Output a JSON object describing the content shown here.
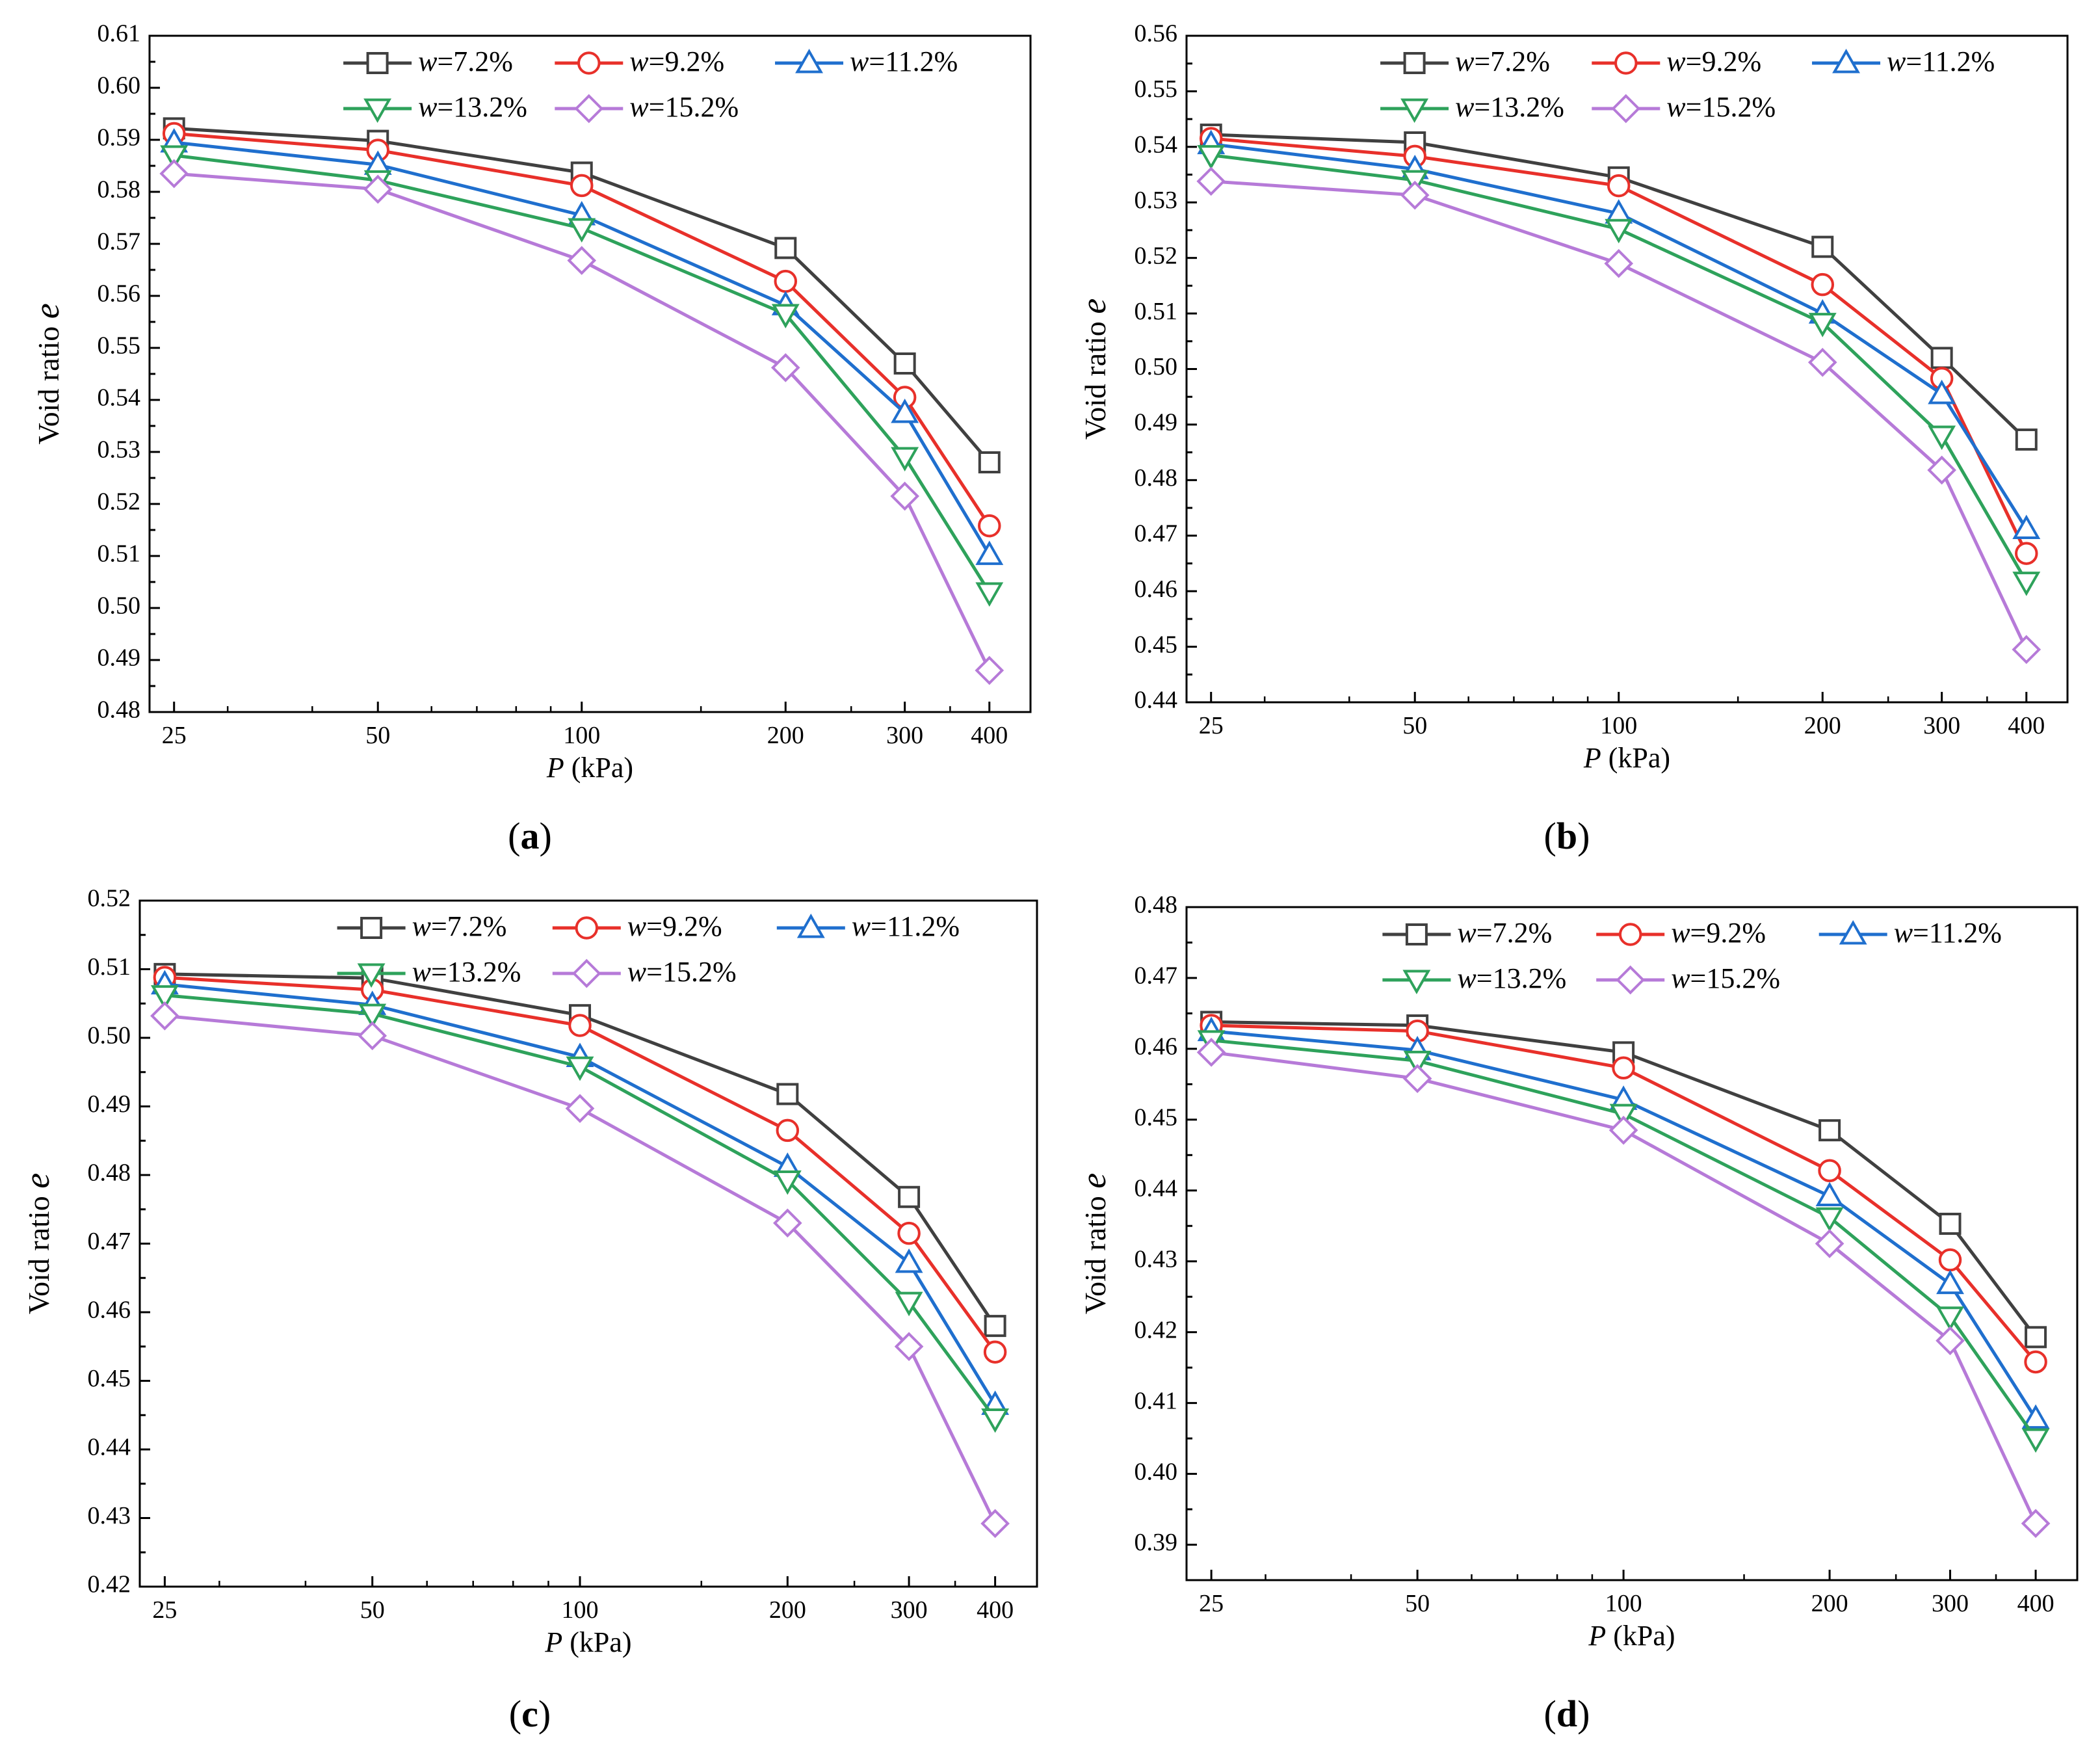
{
  "figure": {
    "series_style": [
      {
        "label": "w=7.2%",
        "color": "#404040",
        "marker": "square"
      },
      {
        "label": "w=9.2%",
        "color": "#e8302a",
        "marker": "circle"
      },
      {
        "label": "w=11.2%",
        "color": "#1f6fce",
        "marker": "triangle-up"
      },
      {
        "label": "w=13.2%",
        "color": "#2ea25b",
        "marker": "triangle-down"
      },
      {
        "label": "w=15.2%",
        "color": "#b67ad8",
        "marker": "diamond"
      }
    ]
  },
  "chart_data": [
    {
      "panel": "a",
      "caption": "(a)",
      "type": "line",
      "xlabel": "P (kPa)",
      "ylabel": "Void ratio e",
      "xscale": "log",
      "x": [
        25,
        50,
        100,
        200,
        300,
        400
      ],
      "xticks": [
        "25",
        "50",
        "100",
        "200",
        "300",
        "400"
      ],
      "xlim": [
        23,
        460
      ],
      "ylim": [
        0.48,
        0.61
      ],
      "yticks": [
        "0.48",
        "0.49",
        "0.50",
        "0.51",
        "0.52",
        "0.53",
        "0.54",
        "0.55",
        "0.56",
        "0.57",
        "0.58",
        "0.59",
        "0.60",
        "0.61"
      ],
      "series": [
        {
          "name": "w=7.2%",
          "values": [
            0.5922,
            0.5898,
            0.5837,
            0.5692,
            0.547,
            0.528
          ]
        },
        {
          "name": "w=9.2%",
          "values": [
            0.5912,
            0.588,
            0.5812,
            0.5628,
            0.5405,
            0.5158
          ]
        },
        {
          "name": "w=11.2%",
          "values": [
            0.5895,
            0.5852,
            0.5755,
            0.5582,
            0.5375,
            0.5102
          ]
        },
        {
          "name": "w=13.2%",
          "values": [
            0.587,
            0.5822,
            0.573,
            0.5565,
            0.529,
            0.503
          ]
        },
        {
          "name": "w=15.2%",
          "values": [
            0.5835,
            0.5805,
            0.5668,
            0.5462,
            0.5215,
            0.488
          ]
        }
      ]
    },
    {
      "panel": "b",
      "caption": "(b)",
      "type": "line",
      "xlabel": "P (kPa)",
      "ylabel": "Void ratio e",
      "xscale": "log",
      "x": [
        25,
        50,
        100,
        200,
        300,
        400
      ],
      "xticks": [
        "25",
        "50",
        "100",
        "200",
        "300",
        "400"
      ],
      "xlim": [
        23,
        460
      ],
      "ylim": [
        0.44,
        0.56
      ],
      "yticks": [
        "0.44",
        "0.45",
        "0.46",
        "0.47",
        "0.48",
        "0.49",
        "0.50",
        "0.51",
        "0.52",
        "0.53",
        "0.54",
        "0.55",
        "0.56"
      ],
      "series": [
        {
          "name": "w=7.2%",
          "values": [
            0.5422,
            0.5408,
            0.5345,
            0.522,
            0.502,
            0.4873
          ]
        },
        {
          "name": "w=9.2%",
          "values": [
            0.5415,
            0.5383,
            0.533,
            0.5152,
            0.4983,
            0.4668
          ]
        },
        {
          "name": "w=11.2%",
          "values": [
            0.5405,
            0.536,
            0.528,
            0.51,
            0.4955,
            0.4712
          ]
        },
        {
          "name": "w=13.2%",
          "values": [
            0.5385,
            0.534,
            0.5252,
            0.5083,
            0.488,
            0.4617
          ]
        },
        {
          "name": "w=15.2%",
          "values": [
            0.5338,
            0.5313,
            0.519,
            0.5012,
            0.4818,
            0.4495
          ]
        }
      ]
    },
    {
      "panel": "c",
      "caption": "(c)",
      "type": "line",
      "xlabel": "P (kPa)",
      "ylabel": "Void ratio e",
      "xscale": "log",
      "x": [
        25,
        50,
        100,
        200,
        300,
        400
      ],
      "xticks": [
        "25",
        "50",
        "100",
        "200",
        "300",
        "400"
      ],
      "xlim": [
        23,
        460
      ],
      "ylim": [
        0.42,
        0.52
      ],
      "yticks": [
        "0.42",
        "0.43",
        "0.44",
        "0.45",
        "0.46",
        "0.47",
        "0.48",
        "0.49",
        "0.50",
        "0.51",
        "0.52"
      ],
      "series": [
        {
          "name": "w=7.2%",
          "values": [
            0.5093,
            0.5087,
            0.5033,
            0.4918,
            0.4768,
            0.458
          ]
        },
        {
          "name": "w=9.2%",
          "values": [
            0.5088,
            0.507,
            0.5018,
            0.4865,
            0.4715,
            0.4542
          ]
        },
        {
          "name": "w=11.2%",
          "values": [
            0.5078,
            0.5048,
            0.4972,
            0.4812,
            0.4672,
            0.4465
          ]
        },
        {
          "name": "w=13.2%",
          "values": [
            0.5062,
            0.5035,
            0.4958,
            0.4792,
            0.4615,
            0.4445
          ]
        },
        {
          "name": "w=15.2%",
          "values": [
            0.5032,
            0.5003,
            0.4897,
            0.473,
            0.455,
            0.4292
          ]
        }
      ]
    },
    {
      "panel": "d",
      "caption": "(d)",
      "type": "line",
      "xlabel": "P (kPa)",
      "ylabel": "Void ratio e",
      "xscale": "log",
      "x": [
        25,
        50,
        100,
        200,
        300,
        400
      ],
      "xticks": [
        "25",
        "50",
        "100",
        "200",
        "300",
        "400"
      ],
      "xlim": [
        23,
        460
      ],
      "ylim": [
        0.385,
        0.48
      ],
      "yticks": [
        "0.39",
        "0.40",
        "0.41",
        "0.42",
        "0.43",
        "0.44",
        "0.45",
        "0.46",
        "0.47",
        "0.48"
      ],
      "series": [
        {
          "name": "w=7.2%",
          "values": [
            0.4638,
            0.4633,
            0.4595,
            0.4485,
            0.4353,
            0.4193
          ]
        },
        {
          "name": "w=9.2%",
          "values": [
            0.4633,
            0.4625,
            0.4573,
            0.4428,
            0.4302,
            0.4158
          ]
        },
        {
          "name": "w=11.2%",
          "values": [
            0.4625,
            0.4598,
            0.4528,
            0.4392,
            0.4268,
            0.4078
          ]
        },
        {
          "name": "w=13.2%",
          "values": [
            0.4612,
            0.4583,
            0.4508,
            0.4362,
            0.4222,
            0.405
          ]
        },
        {
          "name": "w=15.2%",
          "values": [
            0.4595,
            0.4558,
            0.4485,
            0.4325,
            0.4188,
            0.393
          ]
        }
      ]
    }
  ]
}
